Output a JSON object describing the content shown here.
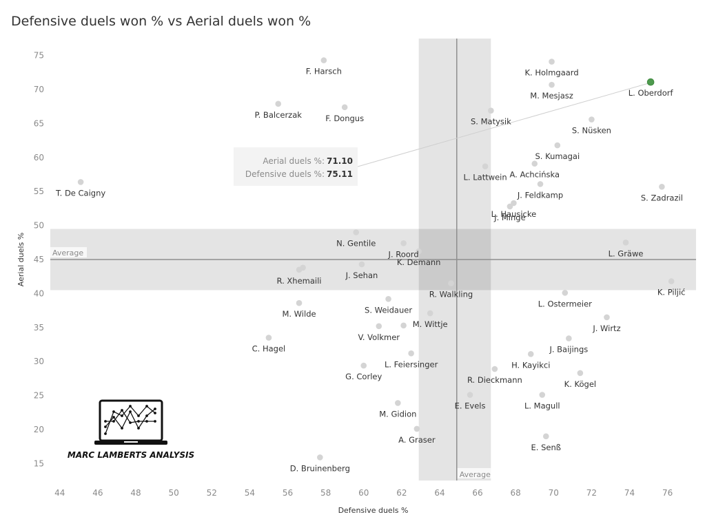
{
  "chart_data": {
    "type": "scatter",
    "title": "Defensive duels won % vs Aerial duels won %",
    "xlabel": "Defensive duels %",
    "ylabel": "Aerial duels %",
    "xlim": [
      43.5,
      77.5
    ],
    "ylim": [
      12.5,
      77.5
    ],
    "xticks": [
      44,
      46,
      48,
      50,
      52,
      54,
      56,
      58,
      60,
      62,
      64,
      66,
      68,
      70,
      72,
      74,
      76
    ],
    "yticks": [
      15,
      20,
      25,
      30,
      35,
      40,
      45,
      50,
      55,
      60,
      65,
      70,
      75
    ],
    "grid": false,
    "reference_lines": {
      "x_average": {
        "value": 64.9,
        "band": [
          62.9,
          66.7
        ],
        "label": "Average"
      },
      "y_average": {
        "value": 45.0,
        "band": [
          40.5,
          49.5
        ],
        "label": "Average"
      }
    },
    "highlight_color": "#4e9a4e",
    "point_color": "#d4d4d4",
    "points": [
      {
        "name": "F. Harsch",
        "x": 57.9,
        "y": 74.3
      },
      {
        "name": "K. Holmgaard",
        "x": 69.9,
        "y": 74.1
      },
      {
        "name": "M. Mesjasz",
        "x": 69.9,
        "y": 70.7
      },
      {
        "name": "L. Oberdorf",
        "x": 75.11,
        "y": 71.1,
        "highlight": true
      },
      {
        "name": "P. Balcerzak",
        "x": 55.5,
        "y": 67.9
      },
      {
        "name": "F. Dongus",
        "x": 59.0,
        "y": 67.4
      },
      {
        "name": "S. Matysik",
        "x": 66.7,
        "y": 66.9
      },
      {
        "name": "S. Nüsken",
        "x": 72.0,
        "y": 65.6
      },
      {
        "name": "S. Kumagai",
        "x": 70.2,
        "y": 61.8
      },
      {
        "name": "A. Achcińska",
        "x": 69.0,
        "y": 59.1
      },
      {
        "name": "L. Lattwein",
        "x": 66.4,
        "y": 58.7
      },
      {
        "name": "T. De Caigny",
        "x": 45.1,
        "y": 56.4
      },
      {
        "name": "J. Feldkamp",
        "x": 69.3,
        "y": 56.1
      },
      {
        "name": "S.  Zadrazil",
        "x": 75.7,
        "y": 55.7
      },
      {
        "name": "L. Hausicke",
        "x": 67.9,
        "y": 53.3
      },
      {
        "name": "J. Minge",
        "x": 67.7,
        "y": 52.8
      },
      {
        "name": "N. Gentile",
        "x": 59.6,
        "y": 49.0
      },
      {
        "name": "J. Roord",
        "x": 62.1,
        "y": 47.4
      },
      {
        "name": "K. Demann",
        "x": 62.9,
        "y": 46.2
      },
      {
        "name": "L. Gräwe",
        "x": 73.8,
        "y": 47.5
      },
      {
        "name": "J. Sehan",
        "x": 59.9,
        "y": 44.3
      },
      {
        "name": "R. Xhemaili",
        "x": 56.6,
        "y": 43.5
      },
      {
        "name": "R. Xhemaili",
        "x": 56.8,
        "y": 43.8,
        "label": false
      },
      {
        "name": "K. Piljić",
        "x": 76.2,
        "y": 41.8
      },
      {
        "name": "R. Walkling",
        "x": 64.6,
        "y": 41.5
      },
      {
        "name": "L. Ostermeier",
        "x": 70.6,
        "y": 40.1
      },
      {
        "name": "S. Weidauer",
        "x": 61.3,
        "y": 39.2
      },
      {
        "name": "M. Wilde",
        "x": 56.6,
        "y": 38.6
      },
      {
        "name": "M. Wittje",
        "x": 63.5,
        "y": 37.1
      },
      {
        "name": "J. Wirtz",
        "x": 72.8,
        "y": 36.5
      },
      {
        "name": "V. Volkmer",
        "x": 60.8,
        "y": 35.2
      },
      {
        "name": "M. Wittje",
        "x": 62.1,
        "y": 35.3,
        "label": false
      },
      {
        "name": "C. Hagel",
        "x": 55.0,
        "y": 33.5
      },
      {
        "name": "J. Baijings",
        "x": 70.8,
        "y": 33.4
      },
      {
        "name": "L. Feiersinger",
        "x": 62.5,
        "y": 31.2
      },
      {
        "name": "H. Kayikci",
        "x": 68.8,
        "y": 31.1
      },
      {
        "name": "G. Corley",
        "x": 60.0,
        "y": 29.4
      },
      {
        "name": "R. Dieckmann",
        "x": 66.9,
        "y": 28.9
      },
      {
        "name": "K.  Kögel",
        "x": 71.4,
        "y": 28.3
      },
      {
        "name": "E. Evels",
        "x": 65.6,
        "y": 25.1
      },
      {
        "name": "L. Magull",
        "x": 69.4,
        "y": 25.1
      },
      {
        "name": "M. Gidion",
        "x": 61.8,
        "y": 23.9
      },
      {
        "name": "A. Graser",
        "x": 62.8,
        "y": 20.1
      },
      {
        "name": "E. Senß",
        "x": 69.6,
        "y": 19.0
      },
      {
        "name": "D. Bruinenberg",
        "x": 57.7,
        "y": 15.9
      }
    ],
    "tooltip": {
      "name": "L. Oberdorf",
      "rows": [
        {
          "key": "Aerial duels  %:",
          "value": "71.10"
        },
        {
          "key": "Defensive duels %:",
          "value": "75.11"
        }
      ]
    }
  },
  "logo": {
    "text": "MARC LAMBERTS ANALYSIS",
    "icon": "laptop-line-chart-icon"
  }
}
